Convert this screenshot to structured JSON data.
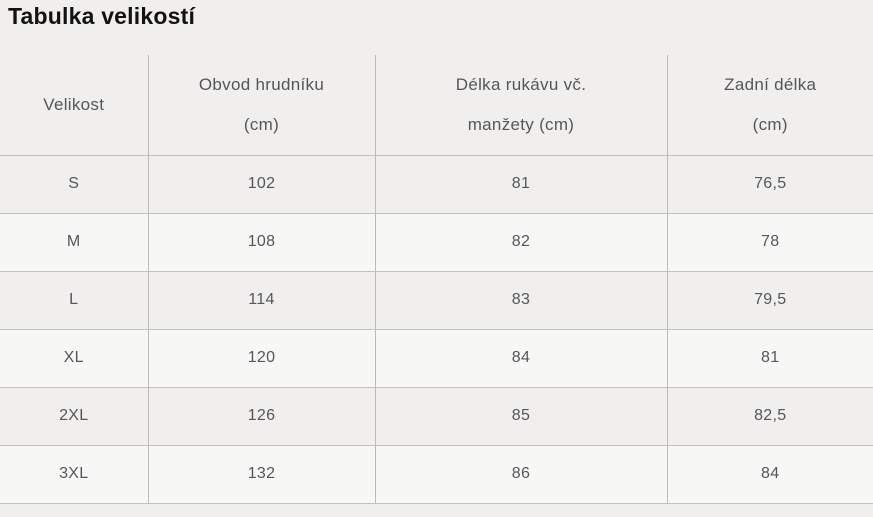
{
  "page": {
    "title": "Tabulka velikostí"
  },
  "colors": {
    "page_bg": "#f0efed",
    "row_alt_bg": "#f7f7f5",
    "border_h": "#c3c1bf",
    "border_v": "#bcbab8",
    "title_text": "#121212",
    "cell_text": "#54565b"
  },
  "table": {
    "columns": [
      {
        "name": "velikost",
        "lines": [
          "Velikost"
        ]
      },
      {
        "name": "obvod-hrudniku",
        "lines": [
          "Obvod hrudníku",
          "(cm)"
        ]
      },
      {
        "name": "delka-rukavu",
        "lines": [
          "Délka rukávu vč.",
          "manžety (cm)"
        ]
      },
      {
        "name": "zadni-delka",
        "lines": [
          "Zadní délka",
          "(cm)"
        ]
      }
    ],
    "rows": [
      {
        "size": "S",
        "chest": "102",
        "sleeve": "81",
        "back": "76,5"
      },
      {
        "size": "M",
        "chest": "108",
        "sleeve": "82",
        "back": "78"
      },
      {
        "size": "L",
        "chest": "114",
        "sleeve": "83",
        "back": "79,5"
      },
      {
        "size": "XL",
        "chest": "120",
        "sleeve": "84",
        "back": "81"
      },
      {
        "size": "2XL",
        "chest": "126",
        "sleeve": "85",
        "back": "82,5"
      },
      {
        "size": "3XL",
        "chest": "132",
        "sleeve": "86",
        "back": "84"
      }
    ]
  }
}
